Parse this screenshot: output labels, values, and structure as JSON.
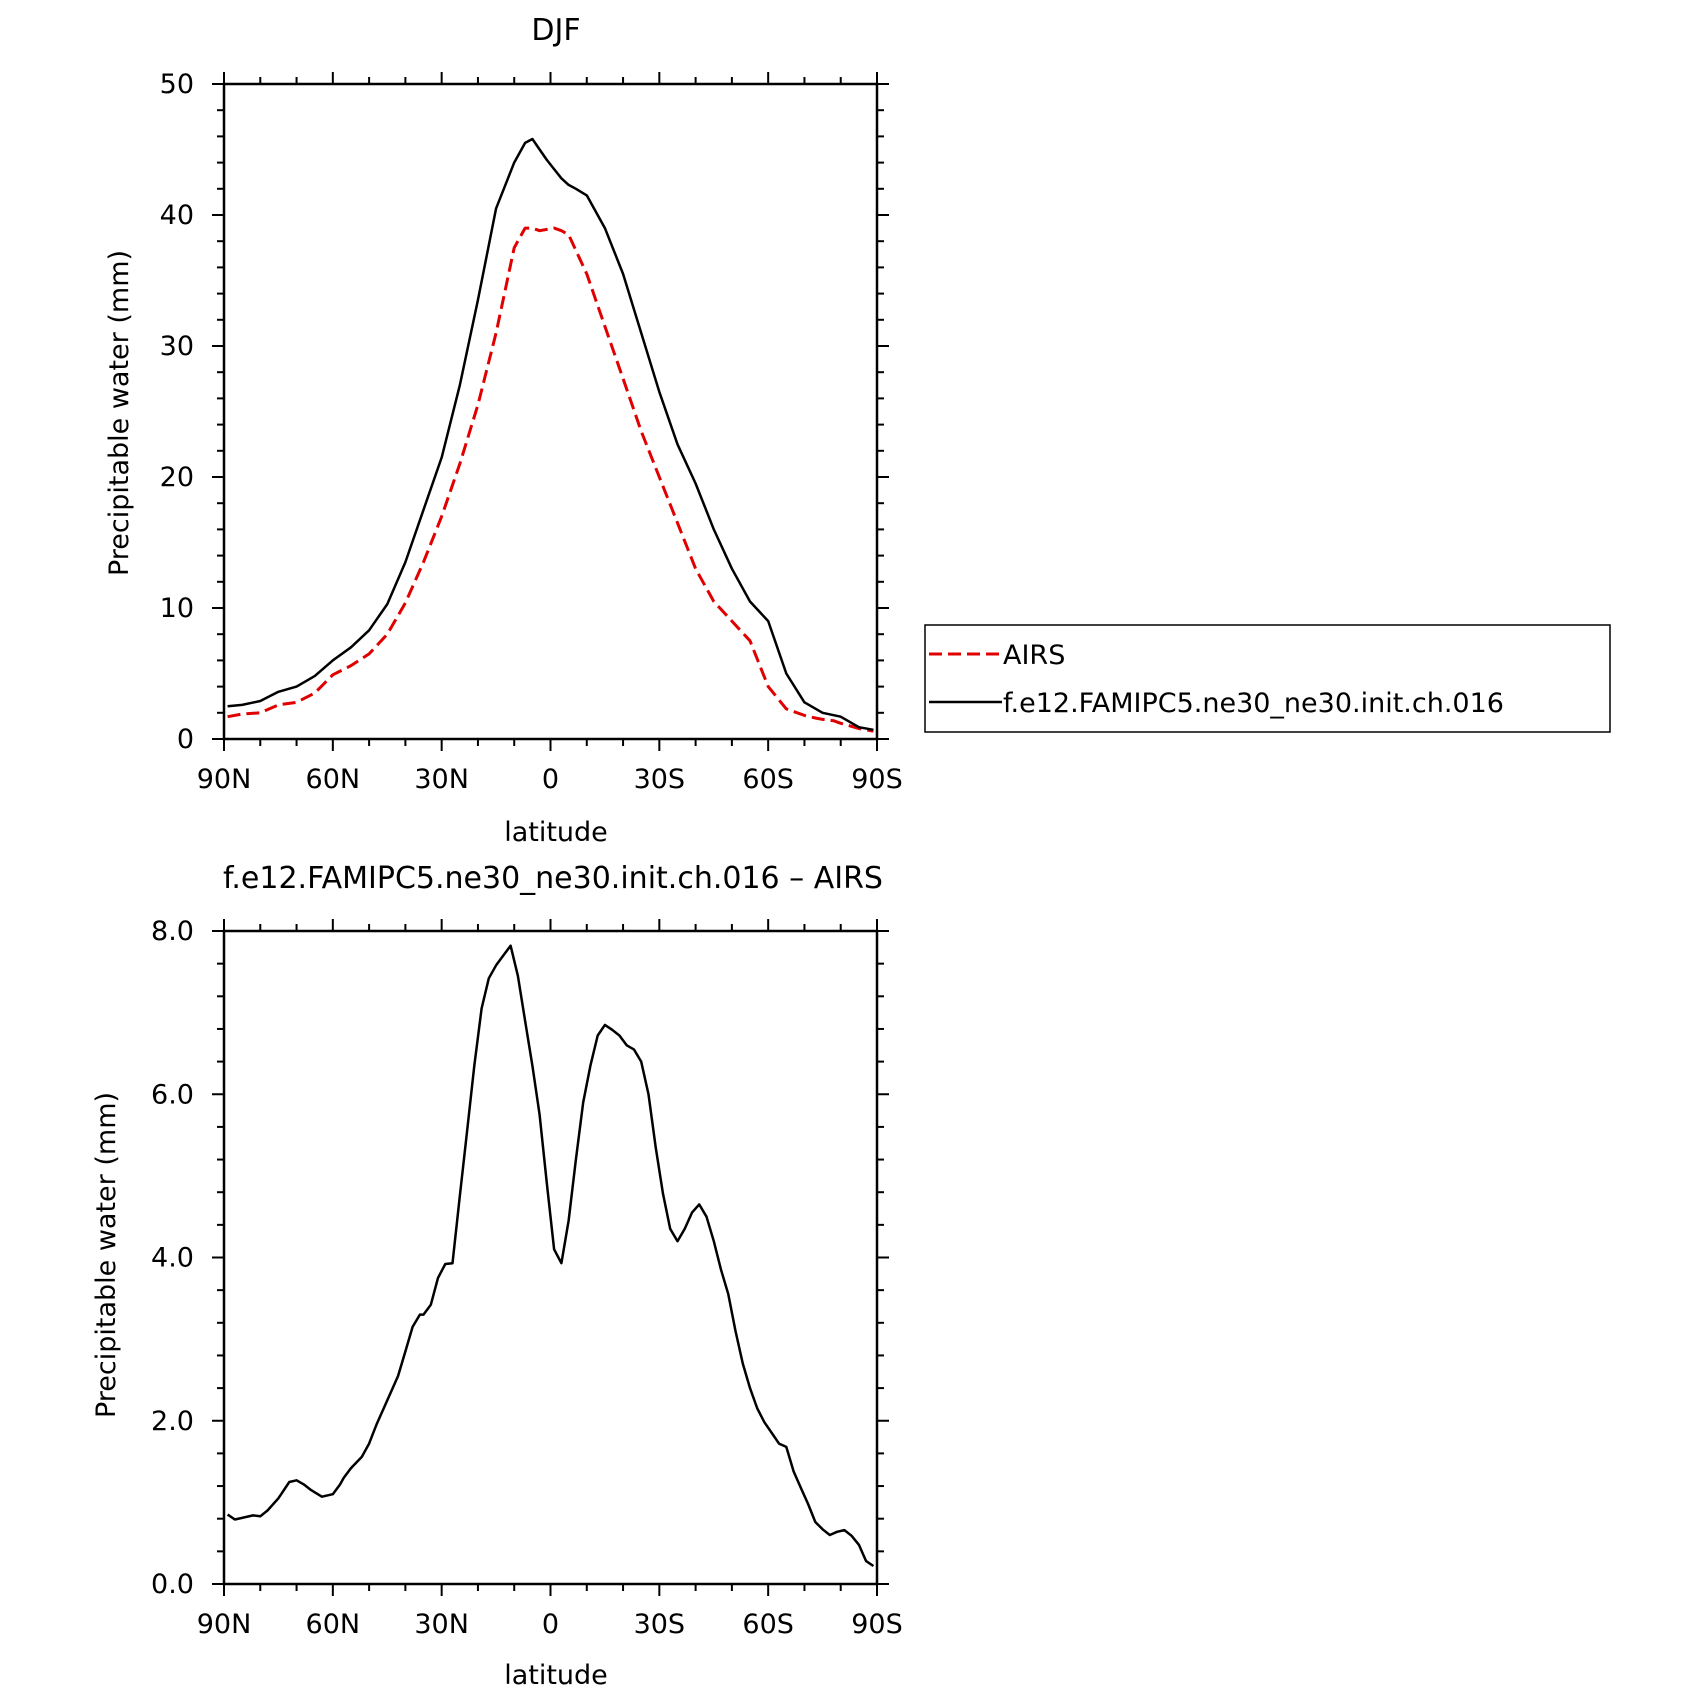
{
  "chart_data": [
    {
      "type": "line",
      "title": "DJF",
      "xlabel": "latitude",
      "ylabel": "Precipitable water (mm)",
      "xlim": [
        -90,
        90
      ],
      "ylim": [
        0,
        50
      ],
      "xticks": [
        -90,
        -60,
        -30,
        0,
        30,
        60,
        90
      ],
      "xtick_labels": [
        "90N",
        "60N",
        "30N",
        "0",
        "30S",
        "60S",
        "90S"
      ],
      "yticks": [
        0,
        10,
        20,
        30,
        40,
        50
      ],
      "ytick_labels": [
        "0",
        "10",
        "20",
        "30",
        "40",
        "50"
      ],
      "legend_position": "right",
      "series": [
        {
          "name": "AIRS",
          "color": "#e00000",
          "dash": true,
          "x": [
            -89,
            -85,
            -80,
            -75,
            -70,
            -65,
            -60,
            -55,
            -50,
            -45,
            -40,
            -35,
            -30,
            -25,
            -20,
            -15,
            -10,
            -7,
            -5,
            -3,
            -1,
            1,
            3,
            5,
            10,
            15,
            20,
            25,
            30,
            35,
            40,
            45,
            50,
            55,
            60,
            65,
            70,
            73,
            75,
            78,
            80,
            85,
            89
          ],
          "values": [
            1.7,
            1.9,
            2.0,
            2.6,
            2.8,
            3.5,
            4.9,
            5.6,
            6.5,
            8.0,
            10.4,
            13.5,
            17.0,
            21.0,
            25.5,
            31.0,
            37.5,
            39.0,
            39.0,
            38.8,
            38.9,
            39.0,
            38.8,
            38.5,
            35.5,
            31.5,
            27.5,
            23.5,
            20.0,
            16.5,
            13.0,
            10.5,
            9.0,
            7.5,
            4.0,
            2.3,
            1.8,
            1.6,
            1.5,
            1.4,
            1.2,
            0.8,
            0.6
          ]
        },
        {
          "name": "f.e12.FAMIPC5.ne30_ne30.init.ch.016",
          "color": "#000000",
          "dash": false,
          "x": [
            -89,
            -85,
            -80,
            -75,
            -70,
            -65,
            -60,
            -55,
            -50,
            -45,
            -40,
            -35,
            -30,
            -25,
            -20,
            -15,
            -10,
            -7,
            -5,
            -3,
            -1,
            1,
            3,
            5,
            7,
            10,
            15,
            20,
            25,
            30,
            35,
            40,
            45,
            50,
            55,
            60,
            65,
            70,
            75,
            80,
            85,
            89
          ],
          "values": [
            2.5,
            2.6,
            2.9,
            3.6,
            4.0,
            4.8,
            6.0,
            7.0,
            8.3,
            10.3,
            13.5,
            17.5,
            21.5,
            27.0,
            33.5,
            40.5,
            44.0,
            45.5,
            45.8,
            45.0,
            44.2,
            43.5,
            42.8,
            42.3,
            42.0,
            41.5,
            39.0,
            35.5,
            31.0,
            26.5,
            22.5,
            19.5,
            16.0,
            13.0,
            10.5,
            9.0,
            5.0,
            2.8,
            2.0,
            1.7,
            0.9,
            0.7
          ]
        }
      ]
    },
    {
      "type": "line",
      "title": "f.e12.FAMIPC5.ne30_ne30.init.ch.016 – AIRS",
      "xlabel": "latitude",
      "ylabel": "Precipitable water (mm)",
      "xlim": [
        -90,
        90
      ],
      "ylim": [
        0,
        8
      ],
      "xticks": [
        -90,
        -60,
        -30,
        0,
        30,
        60,
        90
      ],
      "xtick_labels": [
        "90N",
        "60N",
        "30N",
        "0",
        "30S",
        "60S",
        "90S"
      ],
      "yticks": [
        0,
        2,
        4,
        6,
        8
      ],
      "ytick_labels": [
        "0.0",
        "2.0",
        "4.0",
        "6.0",
        "8.0"
      ],
      "series": [
        {
          "color": "#000000",
          "dash": false,
          "x": [
            -89,
            -87,
            -85,
            -82,
            -80,
            -78,
            -75,
            -72,
            -70,
            -68,
            -66,
            -63,
            -60,
            -58,
            -57,
            -55,
            -52,
            -50,
            -48,
            -45,
            -42,
            -40,
            -38,
            -36,
            -35,
            -33,
            -31,
            -29,
            -27,
            -25,
            -23,
            -21,
            -19,
            -17,
            -15,
            -13,
            -11,
            -9,
            -7,
            -5,
            -3,
            -1,
            1,
            3,
            5,
            7,
            9,
            11,
            13,
            15,
            17,
            19,
            21,
            23,
            25,
            27,
            29,
            31,
            33,
            35,
            37,
            39,
            41,
            43,
            45,
            47,
            49,
            51,
            53,
            55,
            57,
            59,
            61,
            63,
            65,
            67,
            69,
            71,
            73,
            75,
            77,
            79,
            81,
            83,
            85,
            87,
            89
          ],
          "values": [
            0.85,
            0.79,
            0.81,
            0.84,
            0.83,
            0.9,
            1.05,
            1.25,
            1.27,
            1.22,
            1.15,
            1.07,
            1.1,
            1.22,
            1.3,
            1.42,
            1.56,
            1.72,
            1.95,
            2.25,
            2.55,
            2.85,
            3.15,
            3.3,
            3.3,
            3.42,
            3.75,
            3.92,
            3.93,
            4.75,
            5.55,
            6.35,
            7.05,
            7.42,
            7.58,
            7.7,
            7.82,
            7.45,
            6.9,
            6.35,
            5.75,
            4.9,
            4.1,
            3.93,
            4.45,
            5.2,
            5.9,
            6.35,
            6.72,
            6.85,
            6.79,
            6.72,
            6.6,
            6.55,
            6.4,
            6.0,
            5.35,
            4.78,
            4.35,
            4.2,
            4.35,
            4.55,
            4.65,
            4.5,
            4.2,
            3.85,
            3.55,
            3.1,
            2.7,
            2.4,
            2.15,
            1.98,
            1.85,
            1.72,
            1.68,
            1.38,
            1.18,
            0.98,
            0.76,
            0.67,
            0.6,
            0.64,
            0.66,
            0.59,
            0.48,
            0.28,
            0.22
          ]
        }
      ]
    }
  ]
}
